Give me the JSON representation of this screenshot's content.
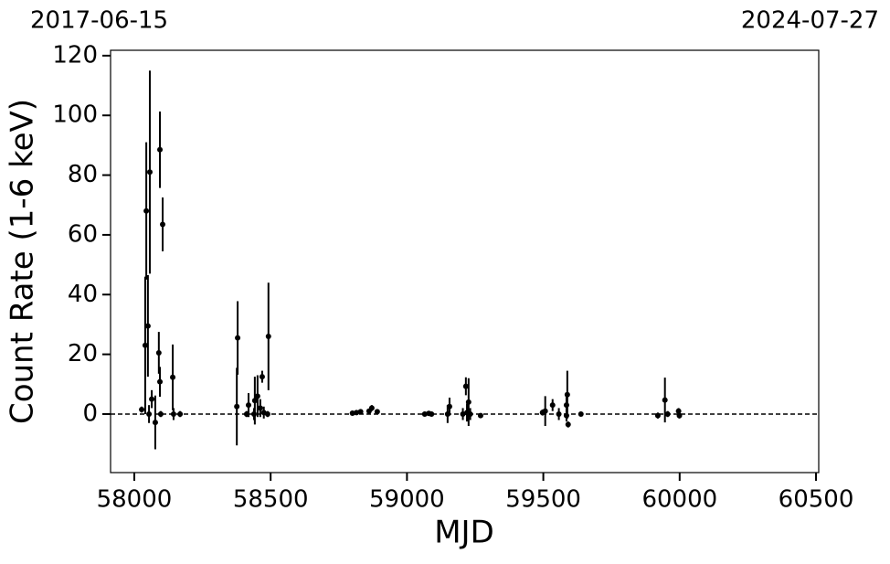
{
  "chart_data": {
    "type": "errorbar",
    "annotations": [
      "2017-06-15",
      "2024-07-27"
    ],
    "x_label": "MJD",
    "y_label": "Count Rate (1-6 keV)",
    "color": "#000000",
    "hline": 0,
    "xlim": [
      57913,
      60510
    ],
    "ylim": [
      -19.6,
      121.8
    ],
    "xticks": [
      58000,
      58500,
      59000,
      59500,
      60000,
      60500
    ],
    "yticks": [
      0,
      20,
      40,
      60,
      80,
      100,
      120
    ],
    "series": [
      {
        "name": "data",
        "color": "#000000",
        "x": [
          58027,
          58040,
          58044,
          58050,
          58057,
          58054,
          58064,
          58077,
          58090,
          58094,
          58094,
          58104,
          58097,
          58141,
          58144,
          58168,
          58379,
          58376,
          58419,
          58442,
          58452,
          58462,
          58469,
          58489,
          58492,
          58412,
          58439,
          58475,
          58800,
          58815,
          58830,
          58861,
          58871,
          58891,
          59065,
          59080,
          59090,
          59149,
          59156,
          59216,
          59226,
          59205,
          59220,
          59232,
          59270,
          59497,
          59507,
          59534,
          59557,
          59585,
          59585,
          59588,
          59591,
          59638,
          59920,
          59946,
          59956,
          59996,
          59999
        ],
        "values": [
          1.5,
          23,
          68,
          29.5,
          81,
          0,
          5,
          -2.8,
          20.5,
          88.5,
          10.8,
          63.5,
          0,
          12.3,
          0,
          0,
          25.5,
          2.5,
          3,
          4.5,
          6,
          2,
          12.5,
          0,
          26,
          0,
          0,
          0.5,
          0.3,
          0.5,
          0.8,
          1,
          2,
          0.8,
          0,
          0.2,
          0,
          0,
          2.5,
          9.3,
          4,
          0,
          0.5,
          0,
          -0.5,
          0.5,
          1,
          3,
          0,
          -0.5,
          3,
          6.5,
          -3.5,
          0,
          -0.5,
          4.7,
          0,
          1,
          -0.5
        ],
        "errors": [
          1,
          23,
          23,
          17,
          34,
          3,
          3,
          9,
          7,
          12.8,
          5,
          9,
          1,
          11,
          2,
          1,
          12.3,
          13,
          4,
          8,
          7,
          3,
          2,
          1,
          18,
          1,
          2,
          2,
          0.5,
          0.5,
          0.5,
          0.5,
          1,
          0.5,
          0.5,
          0.5,
          0.5,
          3,
          3,
          3,
          8,
          2,
          3,
          2,
          0.5,
          1,
          5,
          2,
          2,
          2,
          3,
          8,
          1,
          0.5,
          1,
          7.5,
          1,
          1,
          1
        ]
      }
    ]
  }
}
